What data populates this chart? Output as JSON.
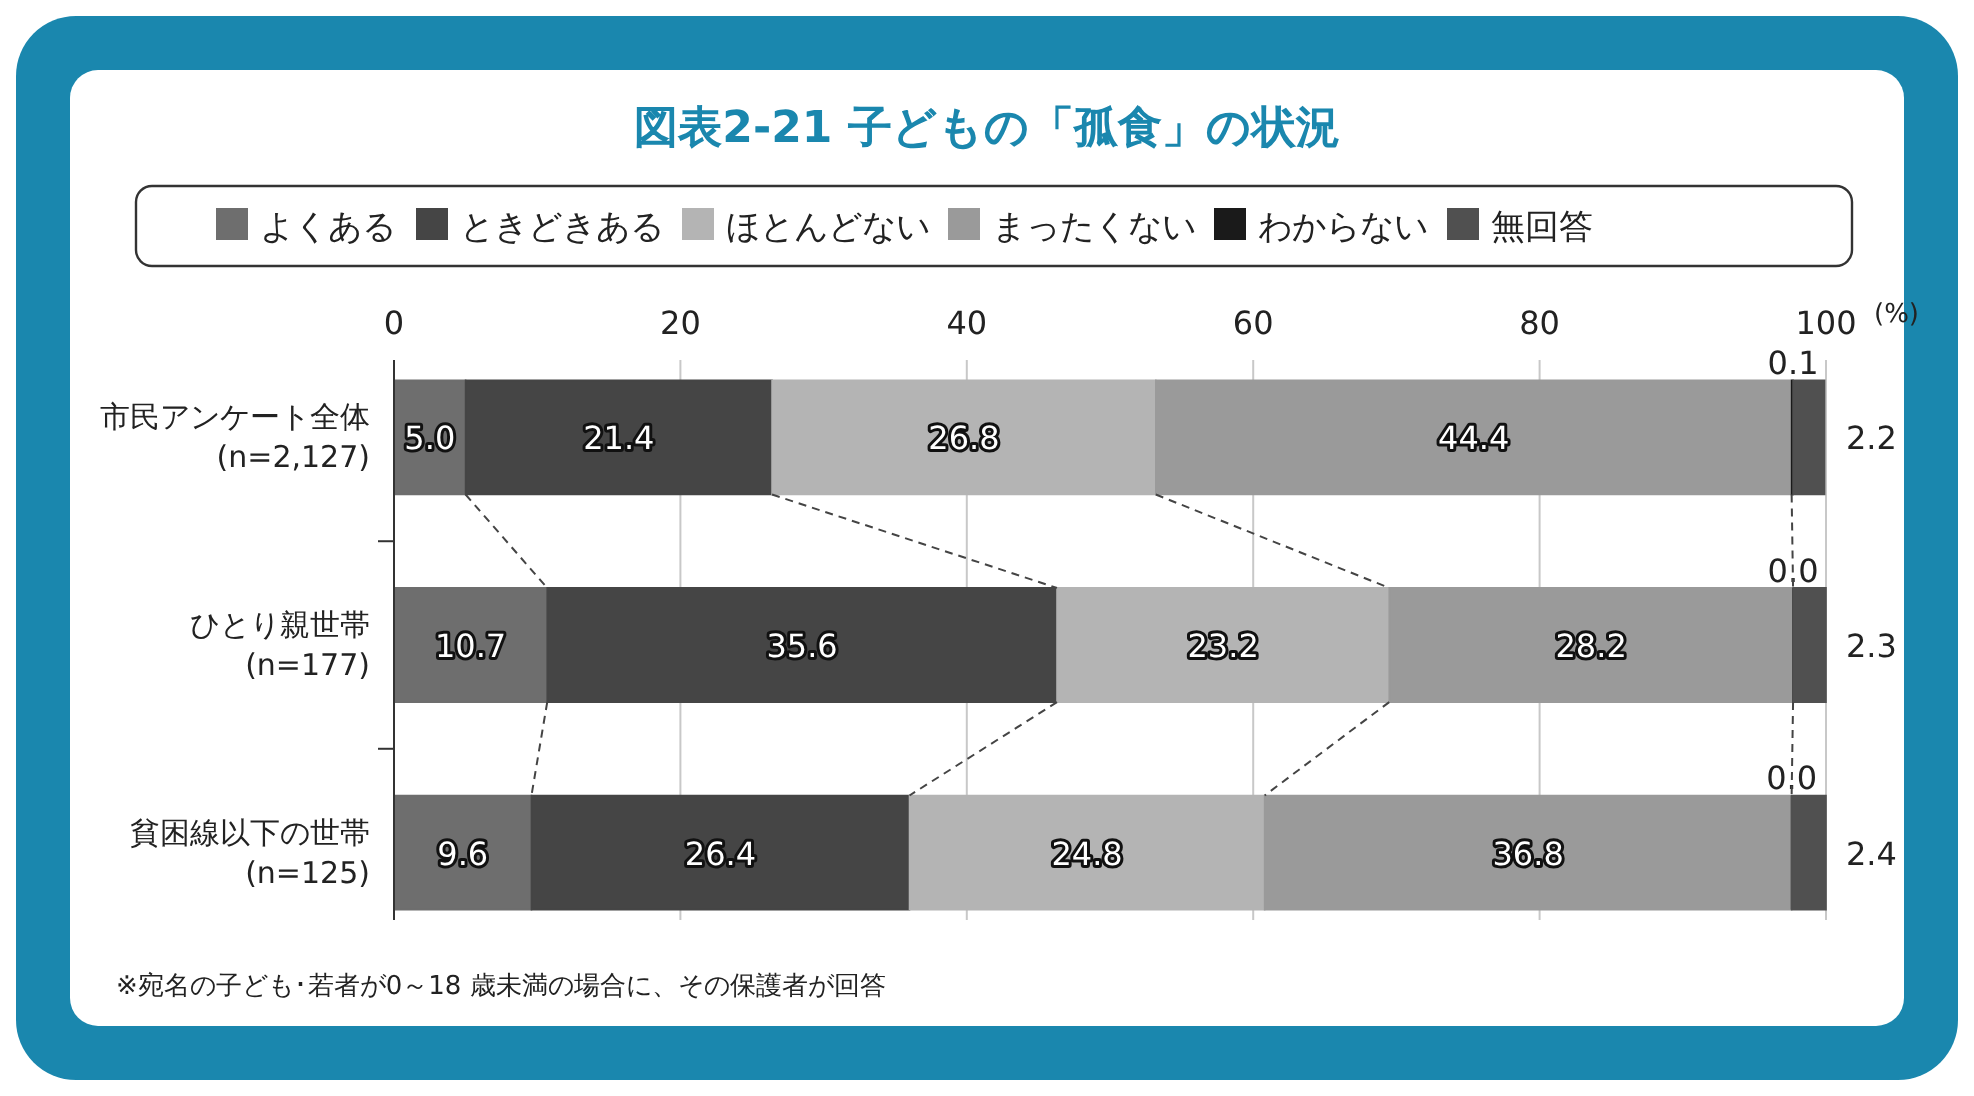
{
  "chart_data": {
    "type": "bar",
    "orientation": "horizontal",
    "stacked": true,
    "title": "図表2-21 子どもの「孤食」の状況",
    "xlabel": "(%)",
    "categories": [
      "市民アンケート全体\n(n=2,127)",
      "ひとり親世帯\n(n=177)",
      "貧困線以下の世帯\n(n=125)"
    ],
    "series": [
      {
        "name": "よくある",
        "color": "#6e6e6e",
        "values": [
          5.0,
          10.7,
          9.6
        ],
        "value_labels": [
          "5.0",
          "10.7",
          "9.6"
        ]
      },
      {
        "name": "ときどきある",
        "color": "#454545",
        "values": [
          21.4,
          35.6,
          26.4
        ],
        "value_labels": [
          "21.4",
          "35.6",
          "26.4"
        ]
      },
      {
        "name": "ほとんどない",
        "color": "#b4b4b4",
        "values": [
          26.8,
          23.2,
          24.8
        ],
        "value_labels": [
          "26.8",
          "23.2",
          "24.8"
        ]
      },
      {
        "name": "まったくない",
        "color": "#9a9a9a",
        "values": [
          44.4,
          28.2,
          36.8
        ],
        "value_labels": [
          "44.4",
          "28.2",
          "36.8"
        ]
      },
      {
        "name": "わからない",
        "color": "#1a1a1a",
        "values": [
          0.1,
          0.0,
          0.0
        ],
        "value_labels": [
          "0.1",
          "0.0",
          "0.0"
        ]
      },
      {
        "name": "無回答",
        "color": "#505050",
        "values": [
          2.2,
          2.3,
          2.4
        ],
        "value_labels": [
          "2.2",
          "2.3",
          "2.4"
        ]
      }
    ],
    "xlim": [
      0,
      100
    ],
    "xticks": [
      0,
      20,
      40,
      60,
      80,
      100
    ],
    "grid": "x",
    "legend": "top",
    "annotations": [
      "※宛名の子ども･若者が0～18 歳未満の場合に、その保護者が回答"
    ]
  }
}
